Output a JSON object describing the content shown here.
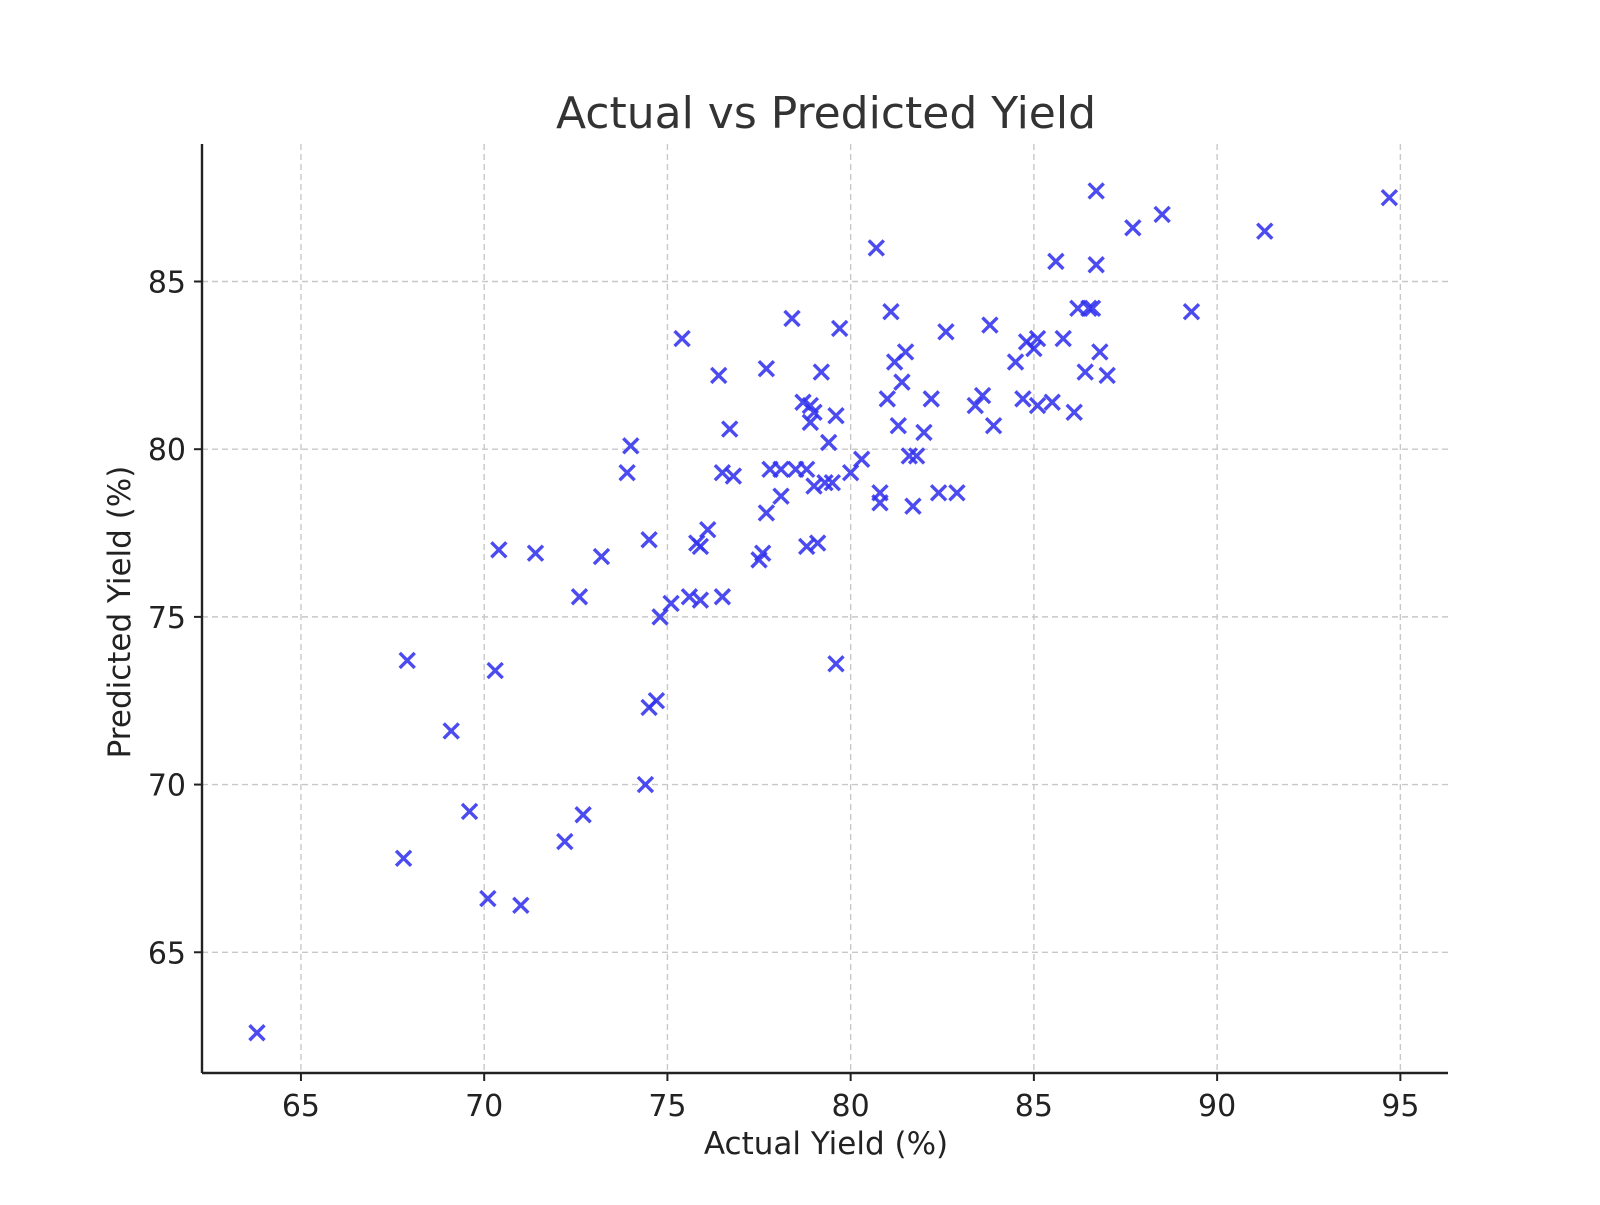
{
  "chart_data": {
    "type": "scatter",
    "title": "Actual vs Predicted Yield",
    "xlabel": "Actual Yield (%)",
    "ylabel": "Predicted Yield (%)",
    "xlim": [
      62.3,
      96.3
    ],
    "ylim": [
      61.4,
      89.1
    ],
    "xticks": [
      65,
      70,
      75,
      80,
      85,
      90,
      95
    ],
    "yticks": [
      65,
      70,
      75,
      80,
      85
    ],
    "grid": true,
    "marker": "x",
    "marker_color": "#3333ee",
    "series": [
      {
        "points": [
          [
            63.8,
            62.6
          ],
          [
            67.8,
            67.8
          ],
          [
            67.9,
            73.7
          ],
          [
            69.1,
            71.6
          ],
          [
            69.6,
            69.2
          ],
          [
            70.1,
            66.6
          ],
          [
            70.3,
            73.4
          ],
          [
            70.4,
            77.0
          ],
          [
            71.0,
            66.4
          ],
          [
            71.4,
            76.9
          ],
          [
            72.2,
            68.3
          ],
          [
            72.6,
            75.6
          ],
          [
            72.7,
            69.1
          ],
          [
            73.2,
            76.8
          ],
          [
            73.9,
            79.3
          ],
          [
            74.0,
            80.1
          ],
          [
            74.4,
            70.0
          ],
          [
            74.5,
            72.3
          ],
          [
            74.5,
            77.3
          ],
          [
            74.7,
            72.5
          ],
          [
            74.8,
            75.0
          ],
          [
            75.1,
            75.4
          ],
          [
            75.4,
            83.3
          ],
          [
            75.6,
            75.6
          ],
          [
            75.8,
            77.2
          ],
          [
            75.9,
            77.1
          ],
          [
            75.9,
            75.5
          ],
          [
            76.1,
            77.6
          ],
          [
            76.4,
            82.2
          ],
          [
            76.5,
            75.6
          ],
          [
            76.5,
            79.3
          ],
          [
            76.7,
            80.6
          ],
          [
            76.8,
            79.2
          ],
          [
            77.5,
            76.7
          ],
          [
            77.6,
            76.9
          ],
          [
            77.7,
            78.1
          ],
          [
            77.7,
            82.4
          ],
          [
            77.8,
            79.4
          ],
          [
            78.1,
            79.4
          ],
          [
            78.1,
            78.6
          ],
          [
            78.4,
            83.9
          ],
          [
            78.5,
            79.4
          ],
          [
            78.7,
            81.4
          ],
          [
            78.8,
            79.4
          ],
          [
            78.8,
            77.1
          ],
          [
            78.9,
            80.8
          ],
          [
            78.9,
            81.3
          ],
          [
            79.0,
            78.9
          ],
          [
            79.0,
            81.1
          ],
          [
            79.1,
            77.2
          ],
          [
            79.2,
            82.3
          ],
          [
            79.3,
            79.0
          ],
          [
            79.4,
            80.2
          ],
          [
            79.5,
            79.0
          ],
          [
            79.6,
            81.0
          ],
          [
            79.6,
            73.6
          ],
          [
            79.7,
            83.6
          ],
          [
            80.0,
            79.3
          ],
          [
            80.3,
            79.7
          ],
          [
            80.7,
            86.0
          ],
          [
            80.8,
            78.7
          ],
          [
            80.8,
            78.4
          ],
          [
            81.0,
            81.5
          ],
          [
            81.1,
            84.1
          ],
          [
            81.2,
            82.6
          ],
          [
            81.3,
            80.7
          ],
          [
            81.4,
            82.0
          ],
          [
            81.5,
            82.9
          ],
          [
            81.6,
            79.8
          ],
          [
            81.7,
            78.3
          ],
          [
            81.8,
            79.8
          ],
          [
            82.0,
            80.5
          ],
          [
            82.2,
            81.5
          ],
          [
            82.4,
            78.7
          ],
          [
            82.6,
            83.5
          ],
          [
            82.9,
            78.7
          ],
          [
            83.4,
            81.3
          ],
          [
            83.6,
            81.6
          ],
          [
            83.8,
            83.7
          ],
          [
            83.9,
            80.7
          ],
          [
            84.5,
            82.6
          ],
          [
            84.7,
            81.5
          ],
          [
            84.8,
            83.2
          ],
          [
            85.0,
            83.0
          ],
          [
            85.1,
            83.3
          ],
          [
            85.1,
            81.3
          ],
          [
            85.5,
            81.4
          ],
          [
            85.6,
            85.6
          ],
          [
            85.8,
            83.3
          ],
          [
            86.1,
            81.1
          ],
          [
            86.2,
            84.2
          ],
          [
            86.4,
            82.3
          ],
          [
            86.5,
            84.2
          ],
          [
            86.6,
            84.2
          ],
          [
            86.7,
            87.7
          ],
          [
            86.7,
            85.5
          ],
          [
            86.8,
            82.9
          ],
          [
            87.0,
            82.2
          ],
          [
            87.7,
            86.6
          ],
          [
            88.5,
            87.0
          ],
          [
            89.3,
            84.1
          ],
          [
            91.3,
            86.5
          ],
          [
            94.7,
            87.5
          ]
        ]
      }
    ]
  }
}
